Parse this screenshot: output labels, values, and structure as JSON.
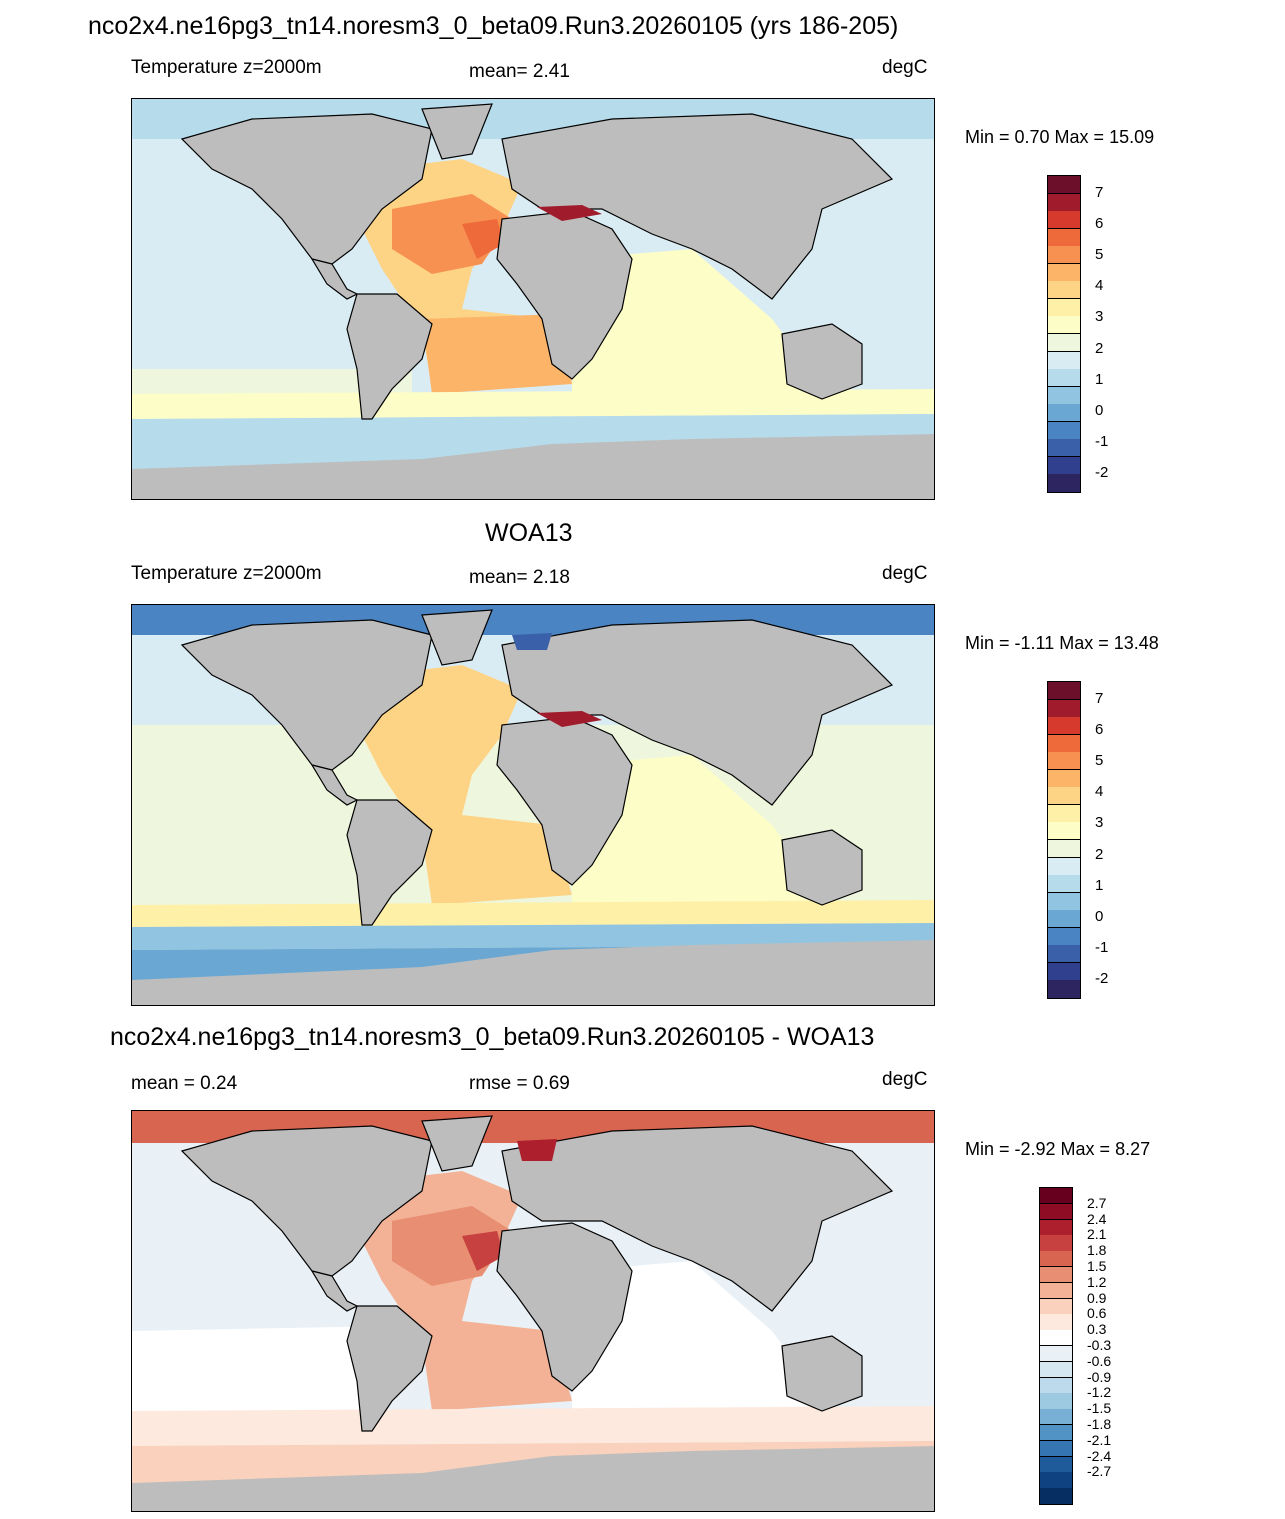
{
  "panels": [
    {
      "heading": "nco2x4.ne16pg3_tn14.noresm3_0_beta09.Run3.20260105 (yrs 186-205)",
      "left_label": "Temperature z=2000m",
      "center_label": "mean=   2.41",
      "units": "degC",
      "minmax": "Min =   0.70 Max =  15.09",
      "variant": "model"
    },
    {
      "heading": "WOA13",
      "left_label": "Temperature z=2000m",
      "center_label": "mean=   2.18",
      "units": "degC",
      "minmax": "Min =  -1.11 Max =  13.48",
      "variant": "obs"
    },
    {
      "heading": "nco2x4.ne16pg3_tn14.noresm3_0_beta09.Run3.20260105 - WOA13",
      "left_label": "mean =   0.24",
      "center_label": "rmse =   0.69",
      "units": "degC",
      "minmax": "Min =  -2.92 Max =   8.27",
      "variant": "diff"
    }
  ],
  "colorbars": {
    "temperature": {
      "colors": [
        "#6b0f2a",
        "#a01c2c",
        "#d63a2c",
        "#ef6a3a",
        "#f79151",
        "#fbb468",
        "#fdd486",
        "#fff0a8",
        "#fdfdc8",
        "#eef7dd",
        "#daecf3",
        "#b6dcec",
        "#90c4e0",
        "#6aa7d2",
        "#4a84c2",
        "#3a60aa",
        "#303f8e",
        "#2c2560"
      ],
      "labels": [
        "7",
        "6",
        "5",
        "4",
        "3",
        "2",
        "1",
        "0",
        "-1",
        "-2"
      ]
    },
    "difference": {
      "colors": [
        "#67001f",
        "#8e0d25",
        "#ad1f2d",
        "#c6413f",
        "#d8654f",
        "#e88e72",
        "#f3b295",
        "#f9d1bc",
        "#fde9de",
        "#ffffff",
        "#e9f1f7",
        "#d5e7f1",
        "#bcdaeb",
        "#9dc9e1",
        "#78b0d5",
        "#5293c5",
        "#3575b2",
        "#1f5b9b",
        "#0f4280",
        "#062e62"
      ],
      "labels": [
        "2.7",
        "2.4",
        "2.1",
        "1.8",
        "1.5",
        "1.2",
        "0.9",
        "0.6",
        "0.3",
        "-0.3",
        "-0.6",
        "-0.9",
        "-1.2",
        "-1.5",
        "-1.8",
        "-2.1",
        "-2.4",
        "-2.7"
      ]
    }
  }
}
